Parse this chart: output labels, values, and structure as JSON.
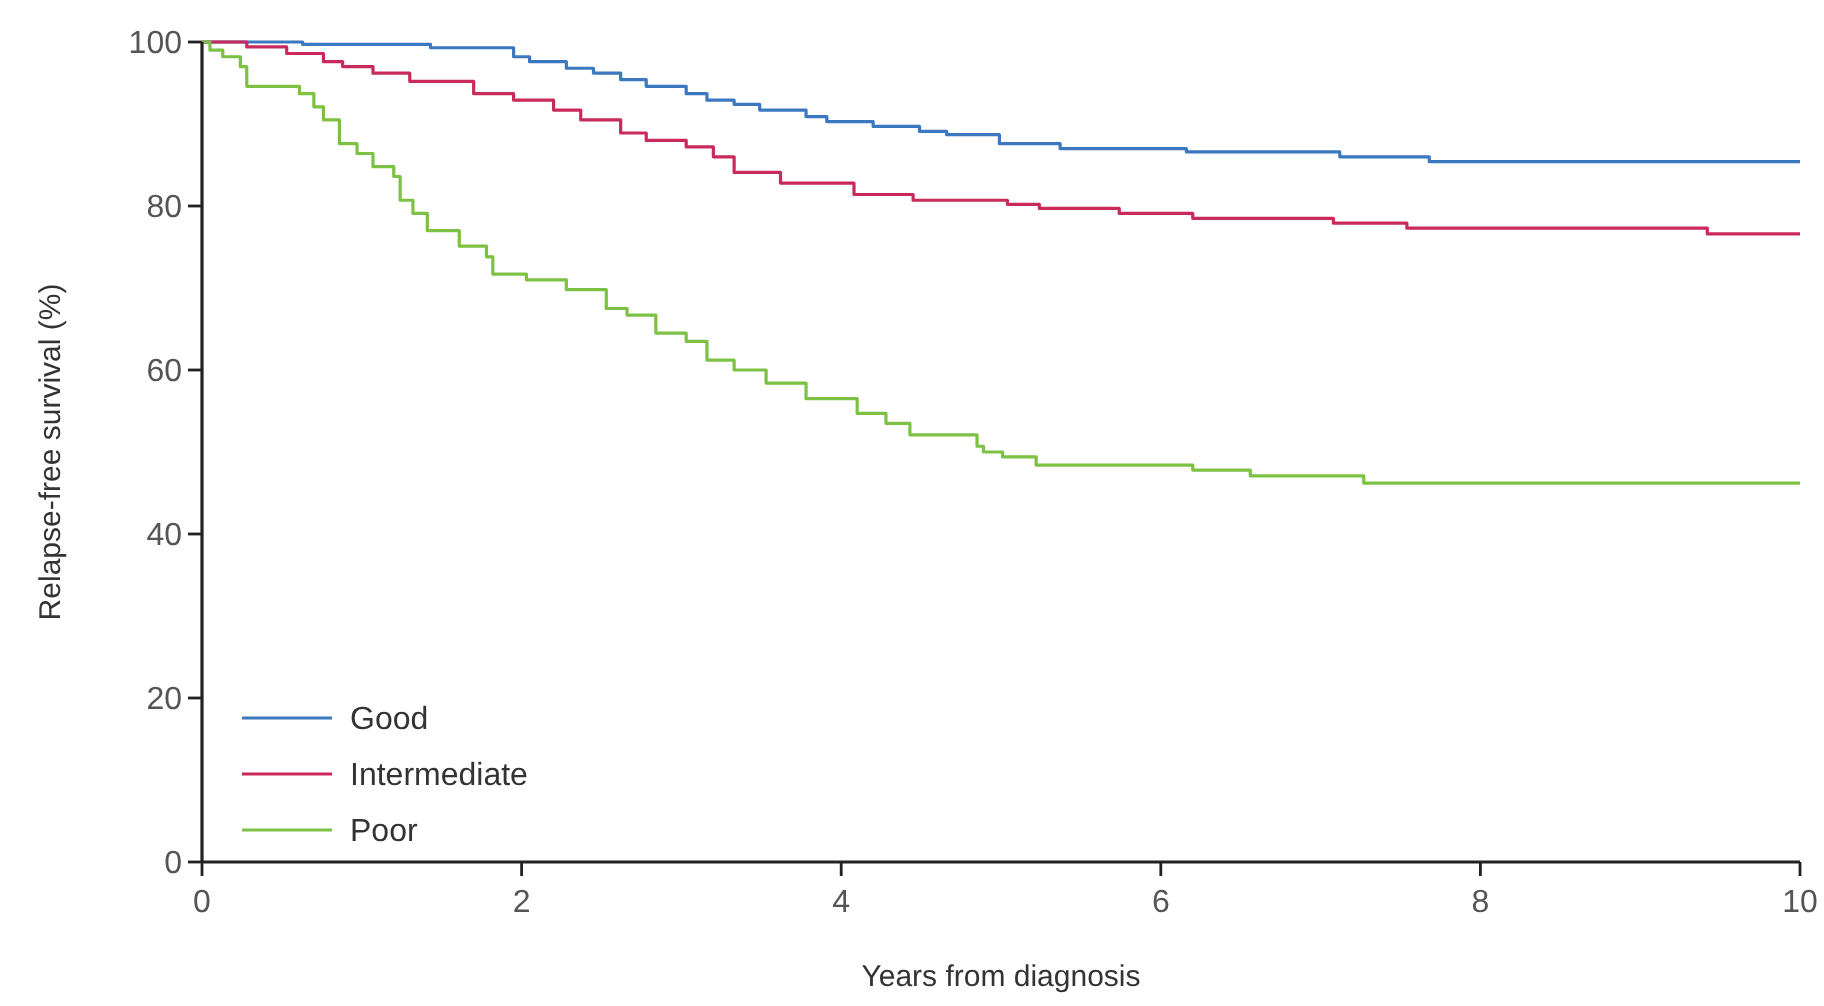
{
  "chart_data": {
    "type": "step",
    "xlabel": "Years from diagnosis",
    "ylabel": "Relapse-free survival (%)",
    "xlim": [
      0,
      10
    ],
    "ylim": [
      0,
      100
    ],
    "xticks": [
      0,
      2,
      4,
      6,
      8,
      10
    ],
    "yticks": [
      0,
      20,
      40,
      60,
      80,
      100
    ],
    "legend": "bottom left",
    "series": [
      {
        "name": "Good",
        "color": "#3b78c0",
        "x": [
          0,
          0.63,
          1.43,
          1.95,
          2.05,
          2.28,
          2.45,
          2.62,
          2.78,
          3.03,
          3.16,
          3.33,
          3.49,
          3.78,
          3.91,
          4.2,
          4.49,
          4.66,
          4.99,
          5.37,
          6.16,
          7.12,
          7.68,
          10
        ],
        "values": [
          100,
          99.7,
          99.3,
          98.2,
          97.6,
          96.8,
          96.2,
          95.4,
          94.6,
          93.7,
          92.9,
          92.4,
          91.7,
          90.9,
          90.3,
          89.7,
          89.1,
          88.7,
          87.6,
          87.0,
          86.6,
          86.0,
          85.4,
          85.4
        ]
      },
      {
        "name": "Intermediate",
        "color": "#c92a5a",
        "x": [
          0,
          0.28,
          0.53,
          0.76,
          0.88,
          1.07,
          1.3,
          1.7,
          1.95,
          2.2,
          2.37,
          2.62,
          2.78,
          3.03,
          3.2,
          3.33,
          3.62,
          4.08,
          4.45,
          5.04,
          5.24,
          5.74,
          6.2,
          7.08,
          7.54,
          9.42,
          10
        ],
        "values": [
          100,
          99.4,
          98.6,
          97.6,
          97.0,
          96.2,
          95.2,
          93.7,
          92.9,
          91.7,
          90.5,
          88.9,
          88.0,
          87.2,
          86.0,
          84.1,
          82.8,
          81.4,
          80.7,
          80.2,
          79.7,
          79.1,
          78.5,
          77.9,
          77.3,
          76.6,
          76.6
        ]
      },
      {
        "name": "Poor",
        "color": "#7cc143",
        "x": [
          0,
          0.05,
          0.13,
          0.24,
          0.28,
          0.61,
          0.7,
          0.76,
          0.86,
          0.97,
          1.07,
          1.2,
          1.24,
          1.32,
          1.41,
          1.61,
          1.78,
          1.82,
          2.03,
          2.28,
          2.53,
          2.66,
          2.84,
          3.03,
          3.16,
          3.33,
          3.53,
          3.78,
          4.1,
          4.28,
          4.43,
          4.85,
          4.89,
          5.01,
          5.22,
          6.2,
          6.56,
          7.27,
          10
        ],
        "values": [
          100,
          99.0,
          98.2,
          97.0,
          94.6,
          93.7,
          92.1,
          90.5,
          87.6,
          86.4,
          84.8,
          83.6,
          80.7,
          79.1,
          77.0,
          75.1,
          73.8,
          71.7,
          71.0,
          69.8,
          67.5,
          66.7,
          64.5,
          63.5,
          61.2,
          60.0,
          58.4,
          56.5,
          54.7,
          53.5,
          52.1,
          50.7,
          50.0,
          49.4,
          48.4,
          47.8,
          47.1,
          46.2,
          46.2
        ]
      }
    ]
  }
}
